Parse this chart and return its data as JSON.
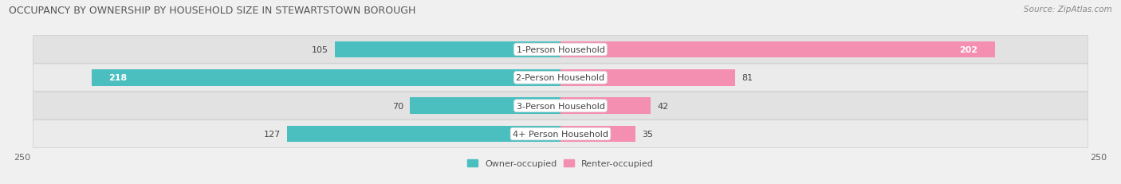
{
  "title": "OCCUPANCY BY OWNERSHIP BY HOUSEHOLD SIZE IN STEWARTSTOWN BOROUGH",
  "source": "Source: ZipAtlas.com",
  "categories": [
    "1-Person Household",
    "2-Person Household",
    "3-Person Household",
    "4+ Person Household"
  ],
  "owner_values": [
    105,
    218,
    70,
    127
  ],
  "renter_values": [
    202,
    81,
    42,
    35
  ],
  "owner_color": "#4BBFBF",
  "renter_color": "#F48FB1",
  "bg_color": "#f0f0f0",
  "row_bg_even": "#e2e2e2",
  "row_bg_odd": "#ebebeb",
  "xlim": 250,
  "label_fontsize": 8,
  "title_fontsize": 9,
  "source_fontsize": 7.5,
  "bar_height": 0.58,
  "figsize": [
    14.06,
    2.32
  ],
  "dpi": 100,
  "owner_label_inside_threshold": 150,
  "renter_label_inside_threshold": 150
}
